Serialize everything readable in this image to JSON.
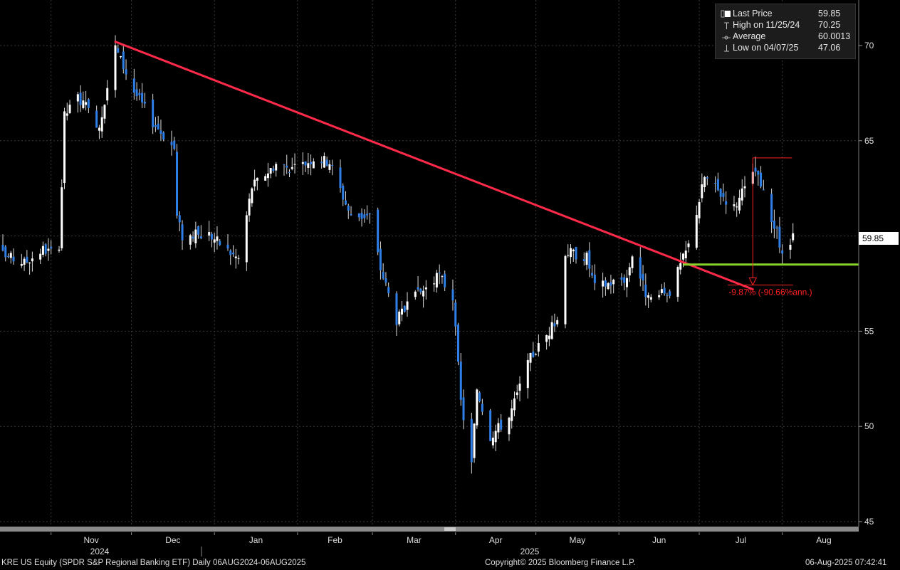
{
  "legend": {
    "items": [
      {
        "label": "Last Price",
        "value": "59.85",
        "icon": "filled-square-icon"
      },
      {
        "label": "High on 11/25/24",
        "value": "70.25",
        "icon": "high-marker-icon"
      },
      {
        "label": "Average",
        "value": "60.0013",
        "icon": "average-marker-icon"
      },
      {
        "label": "Low on 04/07/25",
        "value": "47.06",
        "icon": "low-marker-icon"
      }
    ]
  },
  "last_price_tag": "59.85",
  "annotation_text": "-9.87% (-90.66%ann.)",
  "footer": {
    "left": "KRE US Equity (SPDR S&P Regional Banking ETF)  Daily 06AUG2024-06AUG2025",
    "center": "Copyright© 2025 Bloomberg Finance L.P.",
    "right": "06-Aug-2025 07:42:41"
  },
  "colors": {
    "background": "#000000",
    "up_candle": "#ffffff",
    "down_candle": "#2f7fe8",
    "trendline": "#ff2a4a",
    "support_line": "#86d42a",
    "annotation": "#ff2020",
    "grid": "#3a3a3a"
  },
  "chart_data": {
    "type": "candlestick",
    "ylim": [
      45,
      71
    ],
    "y_ticks": [
      45,
      50,
      55,
      60,
      65,
      70
    ],
    "x_month_labels": [
      "Nov",
      "Dec",
      "Jan",
      "Feb",
      "Mar",
      "Apr",
      "May",
      "Jun",
      "Jul",
      "Aug"
    ],
    "x_year_labels": [
      "2024",
      "2025"
    ],
    "grid": true,
    "legend_position": "top-right",
    "price_anchors": [
      {
        "date": "2024-10-14",
        "price": 59.0
      },
      {
        "date": "2024-10-22",
        "price": 58.6
      },
      {
        "date": "2024-10-29",
        "price": 59.3
      },
      {
        "date": "2024-11-04",
        "price": 59.0
      },
      {
        "date": "2024-11-06",
        "price": 66.3
      },
      {
        "date": "2024-11-11",
        "price": 67.3
      },
      {
        "date": "2024-11-19",
        "price": 65.8
      },
      {
        "date": "2024-11-25",
        "price": 69.9
      },
      {
        "date": "2024-12-02",
        "price": 67.6
      },
      {
        "date": "2024-12-09",
        "price": 66.0
      },
      {
        "date": "2024-12-17",
        "price": 64.6
      },
      {
        "date": "2024-12-18",
        "price": 61.0
      },
      {
        "date": "2024-12-20",
        "price": 60.0
      },
      {
        "date": "2024-12-30",
        "price": 60.1
      },
      {
        "date": "2025-01-08",
        "price": 59.0
      },
      {
        "date": "2025-01-10",
        "price": 58.8
      },
      {
        "date": "2025-01-15",
        "price": 62.6
      },
      {
        "date": "2025-01-24",
        "price": 63.8
      },
      {
        "date": "2025-01-31",
        "price": 63.5
      },
      {
        "date": "2025-02-07",
        "price": 64.1
      },
      {
        "date": "2025-02-13",
        "price": 63.9
      },
      {
        "date": "2025-02-21",
        "price": 61.0
      },
      {
        "date": "2025-02-28",
        "price": 61.1
      },
      {
        "date": "2025-03-04",
        "price": 58.3
      },
      {
        "date": "2025-03-10",
        "price": 55.6
      },
      {
        "date": "2025-03-17",
        "price": 56.8
      },
      {
        "date": "2025-03-26",
        "price": 57.9
      },
      {
        "date": "2025-03-31",
        "price": 56.8
      },
      {
        "date": "2025-04-03",
        "price": 51.3
      },
      {
        "date": "2025-04-07",
        "price": 48.0
      },
      {
        "date": "2025-04-09",
        "price": 52.0
      },
      {
        "date": "2025-04-14",
        "price": 49.5
      },
      {
        "date": "2025-04-21",
        "price": 50.5
      },
      {
        "date": "2025-04-29",
        "price": 53.6
      },
      {
        "date": "2025-05-09",
        "price": 55.6
      },
      {
        "date": "2025-05-12",
        "price": 59.2
      },
      {
        "date": "2025-05-20",
        "price": 58.9
      },
      {
        "date": "2025-05-23",
        "price": 57.3
      },
      {
        "date": "2025-06-04",
        "price": 57.8
      },
      {
        "date": "2025-06-06",
        "price": 59.1
      },
      {
        "date": "2025-06-12",
        "price": 56.6
      },
      {
        "date": "2025-06-20",
        "price": 57.1
      },
      {
        "date": "2025-06-27",
        "price": 59.5
      },
      {
        "date": "2025-07-03",
        "price": 63.1
      },
      {
        "date": "2025-07-14",
        "price": 61.5
      },
      {
        "date": "2025-07-22",
        "price": 63.4
      },
      {
        "date": "2025-07-30",
        "price": 60.1
      },
      {
        "date": "2025-08-01",
        "price": 58.9
      },
      {
        "date": "2025-08-05",
        "price": 59.85
      }
    ],
    "trendline": {
      "start": {
        "date": "2024-11-25",
        "price": 70.2
      },
      "end": {
        "date": "2025-07-21",
        "price": 57.2
      }
    },
    "support_line": {
      "start": {
        "date": "2025-06-25",
        "price": 58.5
      },
      "end": {
        "date": "2025-08-08",
        "price": 58.5
      }
    },
    "drawdown": {
      "start": {
        "date": "2025-07-21",
        "price": 64.1
      },
      "end": {
        "date": "2025-08-01",
        "price": 57.8
      },
      "label": "-9.87% (-90.66%ann.)"
    }
  }
}
